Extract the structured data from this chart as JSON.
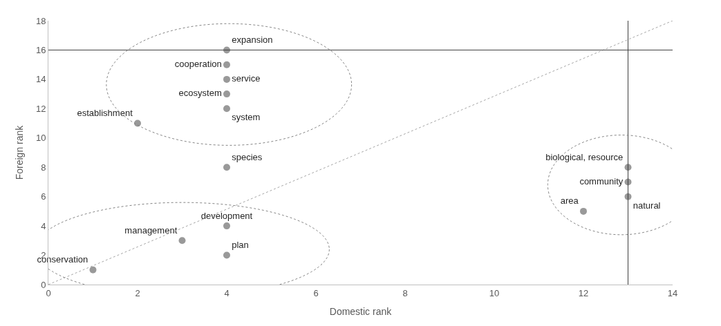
{
  "chart_data": {
    "type": "scatter",
    "xlabel": "Domestic rank",
    "ylabel": "Foreign rank",
    "xlim": [
      0,
      14
    ],
    "xticks": [
      0,
      2,
      4,
      6,
      8,
      10,
      12,
      14
    ],
    "ylim": [
      0,
      18
    ],
    "yticks": [
      0,
      2,
      4,
      6,
      8,
      10,
      12,
      14,
      16,
      18
    ],
    "legend": false,
    "marker": "circle",
    "series": [
      {
        "name": "expansion",
        "color": "#999999",
        "x": [
          4
        ],
        "values": [
          16
        ]
      },
      {
        "name": "cooperation",
        "color": "#999999",
        "x": [
          4
        ],
        "values": [
          15
        ]
      },
      {
        "name": "service",
        "color": "#999999",
        "x": [
          4
        ],
        "values": [
          14
        ]
      },
      {
        "name": "ecosystem",
        "color": "#999999",
        "x": [
          4
        ],
        "values": [
          13
        ]
      },
      {
        "name": "system",
        "color": "#999999",
        "x": [
          4
        ],
        "values": [
          12
        ]
      },
      {
        "name": "establishment",
        "color": "#999999",
        "x": [
          2
        ],
        "values": [
          11
        ]
      },
      {
        "name": "species",
        "color": "#999999",
        "x": [
          4
        ],
        "values": [
          8
        ]
      },
      {
        "name": "development",
        "color": "#999999",
        "x": [
          4
        ],
        "values": [
          4
        ]
      },
      {
        "name": "management",
        "color": "#999999",
        "x": [
          3
        ],
        "values": [
          3
        ]
      },
      {
        "name": "plan",
        "color": "#999999",
        "x": [
          4
        ],
        "values": [
          2
        ]
      },
      {
        "name": "conservation",
        "color": "#999999",
        "x": [
          1
        ],
        "values": [
          1
        ]
      },
      {
        "name": "biological, resource",
        "color": "#999999",
        "x": [
          13
        ],
        "values": [
          8
        ]
      },
      {
        "name": "community",
        "color": "#999999",
        "x": [
          13
        ],
        "values": [
          7
        ]
      },
      {
        "name": "natural",
        "color": "#999999",
        "x": [
          13
        ],
        "values": [
          6
        ]
      },
      {
        "name": "area",
        "color": "#999999",
        "x": [
          12
        ],
        "values": [
          5
        ]
      },
      {
        "type": "line",
        "color": "#a6a6a6",
        "line_style": "dotted",
        "marker": "none",
        "x": [
          0,
          14
        ],
        "values": [
          0,
          18
        ]
      }
    ],
    "ref_lines": [
      {
        "axis": "y",
        "value": 16,
        "color": "#404040"
      },
      {
        "axis": "x",
        "value": 13,
        "color": "#404040"
      }
    ]
  }
}
